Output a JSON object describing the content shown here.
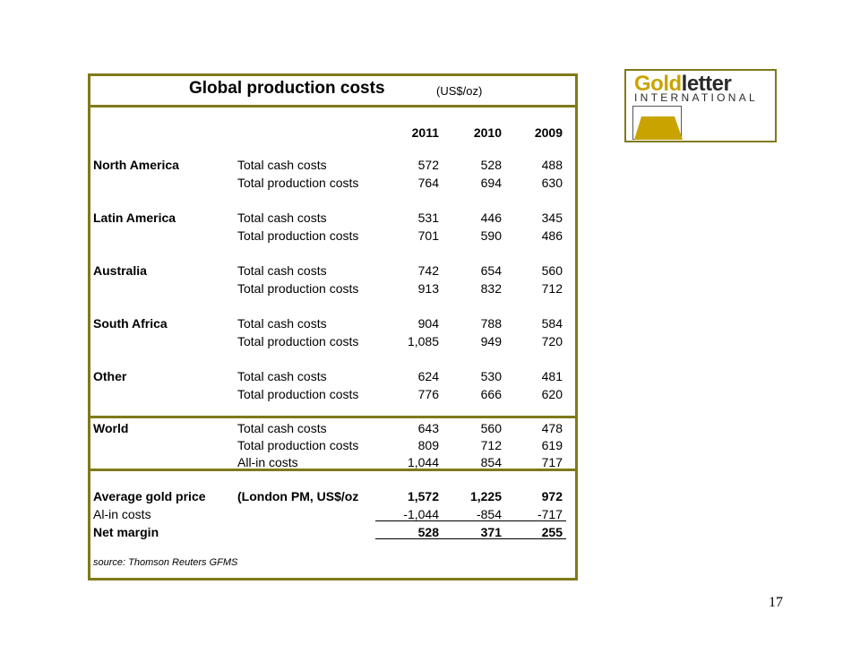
{
  "table": {
    "title": "Global production costs",
    "unit": "(US$/oz)",
    "years": [
      "2011",
      "2010",
      "2009"
    ],
    "regions": [
      {
        "name": "North America",
        "rows": [
          {
            "metric": "Total cash costs",
            "values": [
              "572",
              "528",
              "488"
            ]
          },
          {
            "metric": "Total production costs",
            "values": [
              "764",
              "694",
              "630"
            ]
          }
        ]
      },
      {
        "name": "Latin America",
        "rows": [
          {
            "metric": "Total cash costs",
            "values": [
              "531",
              "446",
              "345"
            ]
          },
          {
            "metric": "Total production costs",
            "values": [
              "701",
              "590",
              "486"
            ]
          }
        ]
      },
      {
        "name": "Australia",
        "rows": [
          {
            "metric": "Total cash costs",
            "values": [
              "742",
              "654",
              "560"
            ]
          },
          {
            "metric": "Total production costs",
            "values": [
              "913",
              "832",
              "712"
            ]
          }
        ]
      },
      {
        "name": "South Africa",
        "rows": [
          {
            "metric": "Total cash costs",
            "values": [
              "904",
              "788",
              "584"
            ]
          },
          {
            "metric": "Total production costs",
            "values": [
              "1,085",
              "949",
              "720"
            ]
          }
        ]
      },
      {
        "name": "Other",
        "rows": [
          {
            "metric": "Total cash costs",
            "values": [
              "624",
              "530",
              "481"
            ]
          },
          {
            "metric": "Total production costs",
            "values": [
              "776",
              "666",
              "620"
            ]
          }
        ]
      }
    ],
    "world": {
      "name": "World",
      "rows": [
        {
          "metric": "Total cash costs",
          "values": [
            "643",
            "560",
            "478"
          ]
        },
        {
          "metric": "Total production costs",
          "values": [
            "809",
            "712",
            "619"
          ]
        },
        {
          "metric": "All-in costs",
          "values": [
            "1,044",
            "854",
            "717"
          ]
        }
      ]
    },
    "summary": {
      "gold_price": {
        "label": "Average gold price",
        "metric": "(London PM, US$/oz",
        "values": [
          "1,572",
          "1,225",
          "972"
        ]
      },
      "allin": {
        "label": "Al-in costs",
        "values": [
          "-1,044",
          "-854",
          "-717"
        ]
      },
      "margin": {
        "label": "Net margin",
        "values": [
          "528",
          "371",
          "255"
        ]
      }
    },
    "source": "source: Thomson Reuters GFMS"
  },
  "logo": {
    "gold": "Gold",
    "letter": "letter",
    "international": "INTERNATIONAL",
    "accent": "#c9a400"
  },
  "page_number": "17",
  "colors": {
    "frame": "#7f7a1a",
    "logo_gold": "#c9a400"
  }
}
